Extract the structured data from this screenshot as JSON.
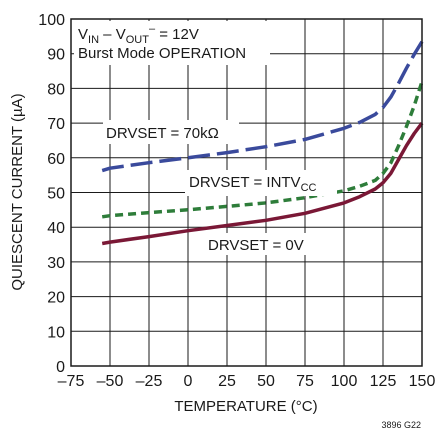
{
  "chart_data": {
    "type": "line",
    "xlabel": "TEMPERATURE (°C)",
    "ylabel": "QUIESCENT CURRENT (µA)",
    "xlim": [
      -75,
      150
    ],
    "ylim": [
      0,
      100
    ],
    "x_ticks": [
      -75,
      -50,
      -25,
      0,
      25,
      50,
      75,
      100,
      125,
      150
    ],
    "y_ticks": [
      0,
      10,
      20,
      30,
      40,
      50,
      60,
      70,
      80,
      90,
      100
    ],
    "grid": true,
    "condition_lines": [
      {
        "main": "V",
        "sub1": "IN",
        "mid": " – V",
        "sub2": "OUT",
        "sup": "–",
        "tail": " = 12V"
      },
      {
        "text": "Burst Mode OPERATION"
      }
    ],
    "figure_code": "3896 G22",
    "series": [
      {
        "name": "DRVSET = 70kΩ",
        "color": "#3a4a9c",
        "dash": "long",
        "x": [
          -55,
          -50,
          -25,
          0,
          25,
          50,
          75,
          100,
          110,
          120,
          125,
          130,
          135,
          140,
          145,
          150
        ],
        "y": [
          56.3,
          57,
          58.6,
          60,
          61.5,
          63.2,
          65.3,
          68.5,
          70.2,
          72.5,
          74.5,
          77.5,
          81.5,
          85.8,
          89.8,
          93.5
        ],
        "label": {
          "text": "DRVSET = 70kΩ"
        }
      },
      {
        "name": "DRVSET = INTVCC",
        "color": "#2e7d3a",
        "dash": "short",
        "x": [
          -55,
          -50,
          -25,
          0,
          25,
          50,
          75,
          100,
          110,
          120,
          125,
          130,
          135,
          140,
          145,
          150
        ],
        "y": [
          43,
          43.3,
          44.2,
          45,
          46,
          47,
          48.5,
          50.5,
          51.8,
          53.5,
          55.5,
          58.5,
          63.5,
          69,
          75,
          82
        ],
        "label": {
          "main": "DRVSET = INTV",
          "sub": "CC"
        }
      },
      {
        "name": "DRVSET = 0V",
        "color": "#7a1836",
        "dash": "solid",
        "x": [
          -55,
          -50,
          -25,
          0,
          25,
          50,
          75,
          100,
          110,
          120,
          125,
          130,
          135,
          140,
          145,
          150
        ],
        "y": [
          35.3,
          35.7,
          37.3,
          39,
          40.5,
          42,
          44,
          47,
          48.8,
          51,
          52.8,
          55.5,
          59.5,
          63.5,
          67,
          70
        ],
        "label": {
          "text": "DRVSET = 0V"
        }
      }
    ]
  }
}
